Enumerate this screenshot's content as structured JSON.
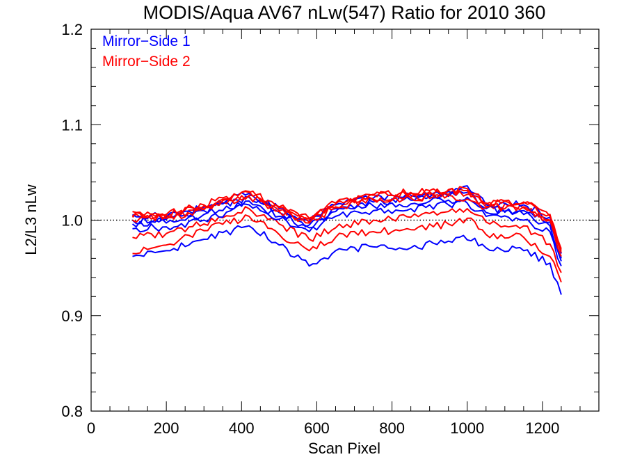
{
  "chart_data": {
    "type": "line",
    "title": "MODIS/Aqua AV67 nLw(547) Ratio for 2010 360",
    "xlabel": "Scan Pixel",
    "ylabel": "L2/L3 nLw",
    "xlim": [
      0,
      1350
    ],
    "ylim": [
      0.8,
      1.2
    ],
    "xticks": [
      0,
      200,
      400,
      600,
      800,
      1000,
      1200
    ],
    "yticks": [
      0.8,
      0.9,
      1.0,
      1.1,
      1.2
    ],
    "xtick_labels": [
      "0",
      "200",
      "400",
      "600",
      "800",
      "1000",
      "1200"
    ],
    "ytick_labels": [
      "0.8",
      "0.9",
      "1.0",
      "1.1",
      "1.2"
    ],
    "reference_line": {
      "y": 1.0,
      "style": "dotted",
      "color": "#000000"
    },
    "legend": {
      "placement": "top-left",
      "entries": [
        {
          "label": "Mirror−Side 1",
          "color": "#0000ff"
        },
        {
          "label": "Mirror−Side 2",
          "color": "#ff0000"
        }
      ]
    },
    "series": [
      {
        "group": "Mirror-Side 1",
        "color": "#0000ff",
        "x": [
          110,
          200,
          300,
          420,
          500,
          580,
          650,
          750,
          850,
          950,
          990,
          1050,
          1150,
          1220,
          1250
        ],
        "values": [
          0.962,
          0.968,
          0.98,
          0.994,
          0.974,
          0.952,
          0.968,
          0.972,
          0.971,
          0.978,
          0.984,
          0.971,
          0.968,
          0.955,
          0.922
        ]
      },
      {
        "group": "Mirror-Side 2",
        "color": "#ff0000",
        "x": [
          110,
          200,
          300,
          420,
          500,
          580,
          650,
          750,
          850,
          950,
          1000,
          1050,
          1150,
          1220,
          1250
        ],
        "values": [
          0.965,
          0.974,
          0.989,
          1.004,
          0.985,
          0.968,
          0.982,
          0.988,
          0.99,
          0.996,
          1.002,
          0.985,
          0.982,
          0.962,
          0.935
        ]
      },
      {
        "group": "Mirror-Side 2",
        "color": "#ff0000",
        "x": [
          110,
          200,
          300,
          420,
          500,
          580,
          650,
          750,
          850,
          950,
          1000,
          1050,
          1150,
          1220,
          1250
        ],
        "values": [
          0.982,
          0.986,
          0.996,
          1.012,
          0.996,
          0.98,
          0.992,
          1.0,
          1.003,
          1.009,
          1.012,
          0.998,
          0.994,
          0.975,
          0.945
        ]
      },
      {
        "group": "Mirror-Side 1",
        "color": "#0000ff",
        "x": [
          110,
          200,
          300,
          420,
          500,
          580,
          650,
          750,
          850,
          950,
          1000,
          1050,
          1150,
          1220,
          1250
        ],
        "values": [
          0.991,
          0.993,
          1.0,
          1.016,
          1.001,
          0.988,
          1.004,
          1.01,
          1.012,
          1.016,
          1.018,
          1.004,
          1.0,
          0.988,
          0.952
        ]
      },
      {
        "group": "Mirror-Side 1",
        "color": "#0000ff",
        "x": [
          110,
          200,
          300,
          420,
          500,
          580,
          650,
          750,
          850,
          950,
          1000,
          1050,
          1150,
          1220,
          1250
        ],
        "values": [
          0.996,
          0.997,
          1.006,
          1.02,
          1.004,
          0.992,
          1.009,
          1.015,
          1.017,
          1.021,
          1.024,
          1.008,
          1.006,
          0.994,
          0.957
        ]
      },
      {
        "group": "Mirror-Side 1",
        "color": "#0000ff",
        "x": [
          110,
          200,
          300,
          420,
          500,
          580,
          650,
          750,
          850,
          950,
          1000,
          1050,
          1150,
          1220,
          1250
        ],
        "values": [
          1.0,
          1.001,
          1.01,
          1.024,
          1.008,
          0.995,
          1.012,
          1.019,
          1.021,
          1.025,
          1.029,
          1.012,
          1.01,
          0.998,
          0.96
        ]
      },
      {
        "group": "Mirror-Side 2",
        "color": "#ff0000",
        "x": [
          110,
          200,
          300,
          420,
          500,
          580,
          650,
          750,
          850,
          950,
          1000,
          1050,
          1150,
          1220,
          1250
        ],
        "values": [
          1.003,
          1.003,
          1.012,
          1.026,
          1.01,
          0.997,
          1.014,
          1.021,
          1.023,
          1.027,
          1.031,
          1.014,
          1.013,
          1.0,
          0.962
        ]
      },
      {
        "group": "Mirror-Side 1",
        "color": "#0000ff",
        "x": [
          110,
          200,
          300,
          420,
          500,
          580,
          650,
          750,
          850,
          950,
          1000,
          1050,
          1150,
          1220,
          1250
        ],
        "values": [
          1.006,
          1.004,
          1.014,
          1.028,
          1.012,
          0.999,
          1.016,
          1.023,
          1.026,
          1.03,
          1.036,
          1.016,
          1.016,
          1.003,
          0.965
        ]
      },
      {
        "group": "Mirror-Side 2",
        "color": "#ff0000",
        "x": [
          110,
          200,
          300,
          420,
          500,
          580,
          650,
          750,
          850,
          950,
          1000,
          1050,
          1150,
          1220,
          1250
        ],
        "values": [
          1.009,
          1.006,
          1.016,
          1.03,
          1.014,
          1.002,
          1.018,
          1.026,
          1.028,
          1.032,
          1.033,
          1.018,
          1.018,
          1.006,
          0.968
        ]
      },
      {
        "group": "Mirror-Side 2",
        "color": "#ff0000",
        "x": [
          110,
          200,
          300,
          420,
          500,
          580,
          650,
          750,
          850,
          950,
          1000,
          1050,
          1150,
          1220,
          1250
        ],
        "values": [
          1.004,
          1.005,
          1.015,
          1.029,
          1.013,
          1.001,
          1.017,
          1.027,
          1.029,
          1.031,
          1.027,
          1.017,
          1.019,
          1.004,
          0.97
        ]
      },
      {
        "group": "Mirror-Side 2",
        "color": "#ff0000",
        "x": [
          110,
          200,
          300,
          420,
          500,
          580,
          650,
          750,
          850,
          950,
          1000,
          1050,
          1150,
          1220,
          1250
        ],
        "values": [
          1.0,
          1.002,
          1.011,
          1.025,
          1.009,
          0.998,
          1.013,
          1.022,
          1.024,
          1.026,
          1.022,
          1.013,
          1.014,
          1.0,
          0.966
        ]
      }
    ]
  }
}
